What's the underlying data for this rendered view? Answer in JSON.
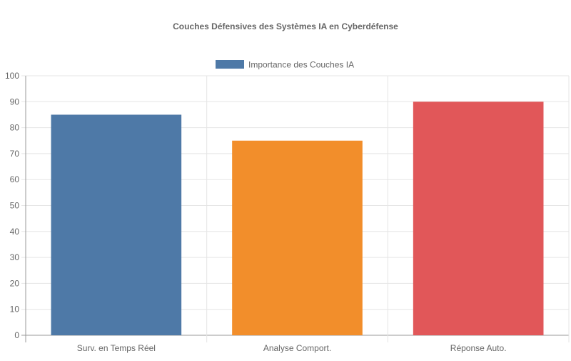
{
  "chart_data": {
    "type": "bar",
    "title": "Couches Défensives des Systèmes IA en Cyberdéfense",
    "categories": [
      "Surv. en Temps Réel",
      "Analyse Comport.",
      "Réponse Auto."
    ],
    "series": [
      {
        "name": "Importance des Couches IA",
        "values": [
          85,
          75,
          90
        ],
        "colors": [
          "#4e79a7",
          "#f28e2b",
          "#e15759"
        ]
      }
    ],
    "ylim": [
      0,
      100
    ],
    "yticks": [
      0,
      10,
      20,
      30,
      40,
      50,
      60,
      70,
      80,
      90,
      100
    ],
    "grid": true,
    "legend_position": "top",
    "legend_color": "#4e79a7"
  }
}
